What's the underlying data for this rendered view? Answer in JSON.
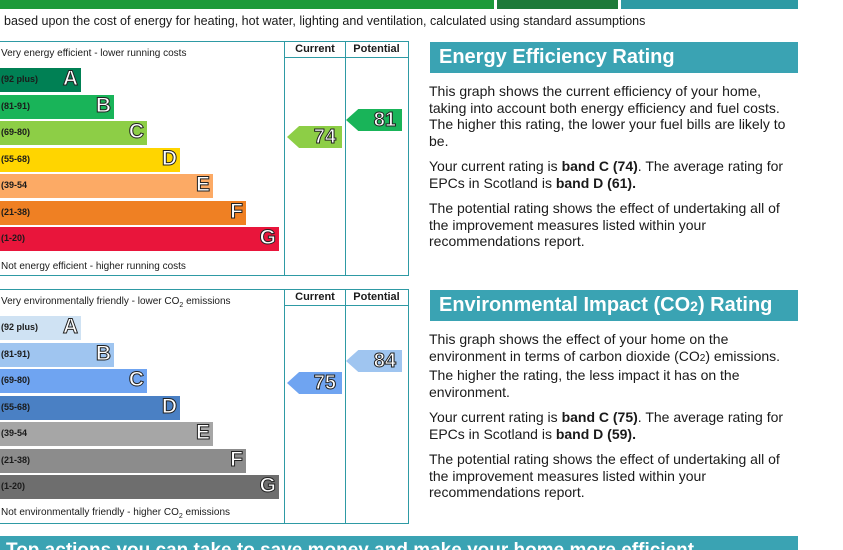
{
  "intro_text": "based upon the cost of energy for heating, hot water, lighting and ventilation, calculated using standard assumptions",
  "energy": {
    "top_label": "Very energy efficient - lower running costs",
    "bottom_label": "Not energy efficient - higher running costs",
    "col_current": "Current",
    "col_potential": "Potential",
    "bands": [
      {
        "range": "(92 plus)",
        "letter": "A",
        "color": "#008054"
      },
      {
        "range": "(81-91)",
        "letter": "B",
        "color": "#19b459"
      },
      {
        "range": "(69-80)",
        "letter": "C",
        "color": "#8dce46"
      },
      {
        "range": "(55-68)",
        "letter": "D",
        "color": "#ffd500"
      },
      {
        "range": "(39-54",
        "letter": "E",
        "color": "#fcaa65"
      },
      {
        "range": "(21-38)",
        "letter": "F",
        "color": "#ef8023"
      },
      {
        "range": "(1-20)",
        "letter": "G",
        "color": "#e9153b"
      }
    ],
    "current": {
      "value": "74",
      "color": "#8dce46"
    },
    "potential": {
      "value": "81",
      "color": "#19b459"
    },
    "panel": {
      "title": "Energy Efficiency Rating",
      "p1": "This graph shows the current efficiency of your home, taking into account both energy efficiency and fuel costs. The higher this rating, the lower your fuel bills are likely to be.",
      "p2_pre": "Your current rating is ",
      "p2_band": "band C (74)",
      "p2_mid": ". The average rating for EPCs in Scotland is ",
      "p2_avg": "band D (61).",
      "p3": "The potential rating shows the effect of undertaking all of the improvement measures listed within your recommendations report."
    }
  },
  "environment": {
    "top_label_pre": "Very environmentally friendly - lower CO",
    "top_label_sub": "2",
    "top_label_post": " emissions",
    "bottom_label_pre": "Not environmentally friendly - higher CO",
    "bottom_label_sub": "2",
    "bottom_label_post": " emissions",
    "col_current": "Current",
    "col_potential": "Potential",
    "bands": [
      {
        "range": "(92 plus)",
        "letter": "A",
        "color": "#cfe2f3"
      },
      {
        "range": "(81-91)",
        "letter": "B",
        "color": "#9fc5f0"
      },
      {
        "range": "(69-80)",
        "letter": "C",
        "color": "#6fa4f1"
      },
      {
        "range": "(55-68)",
        "letter": "D",
        "color": "#4a80c4"
      },
      {
        "range": "(39-54",
        "letter": "E",
        "color": "#a6a6a6"
      },
      {
        "range": "(21-38)",
        "letter": "F",
        "color": "#8c8c8c"
      },
      {
        "range": "(1-20)",
        "letter": "G",
        "color": "#6e6e6e"
      }
    ],
    "current": {
      "value": "75",
      "color": "#6fa4f1"
    },
    "potential": {
      "value": "84",
      "color": "#9fc5f0"
    },
    "panel": {
      "title_pre": "Environmental Impact (CO",
      "title_sub": "2",
      "title_post": ") Rating",
      "p1_pre": "This graph shows the effect of your home on the environment in terms of carbon dioxide (CO",
      "p1_sub": "2",
      "p1_post": ") emissions. The higher the rating, the less impact it has on the environment.",
      "p2_pre": "Your current rating is ",
      "p2_band": "band C (75)",
      "p2_mid": ". The average rating for EPCs in Scotland is ",
      "p2_avg": "band D (59).",
      "p3": "The potential rating shows the effect of undertaking all of the improvement measures listed within your recommendations report."
    }
  },
  "bottom_heading": "Top actions you can take to save money and make your home more efficient"
}
